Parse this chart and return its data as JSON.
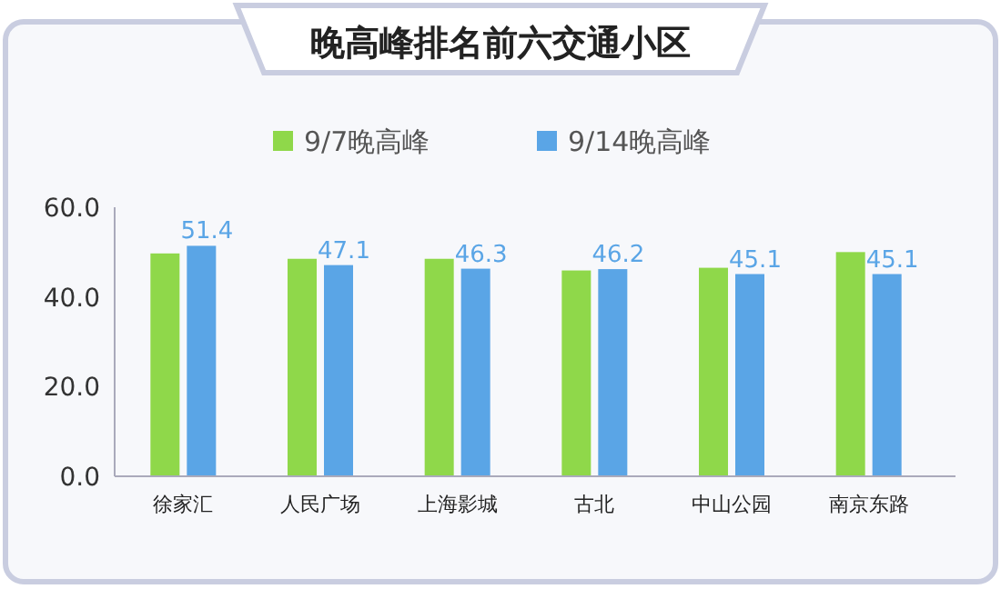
{
  "chart_data": {
    "type": "bar",
    "title": "晚高峰排名前六交通小区",
    "categories": [
      "徐家汇",
      "人民广场",
      "上海影城",
      "古北",
      "中山公园",
      "南京东路"
    ],
    "series": [
      {
        "name": "9/7晚高峰",
        "color": "#8fd84a",
        "values": [
          49.7,
          48.5,
          48.5,
          45.9,
          46.5,
          50.0
        ]
      },
      {
        "name": "9/14晚高峰",
        "color": "#5aa5e6",
        "values": [
          51.4,
          47.1,
          46.3,
          46.2,
          45.1,
          45.1
        ],
        "value_labels": [
          "51.4",
          "47.1",
          "46.3",
          "46.2",
          "45.1",
          "45.1"
        ]
      }
    ],
    "ylim": [
      0,
      60
    ],
    "yticks": [
      {
        "value": 0,
        "label": "0.0"
      },
      {
        "value": 20,
        "label": "20.0"
      },
      {
        "value": 40,
        "label": "40.0"
      },
      {
        "value": 60,
        "label": "60.0"
      }
    ],
    "grid": false,
    "legend": "top"
  }
}
